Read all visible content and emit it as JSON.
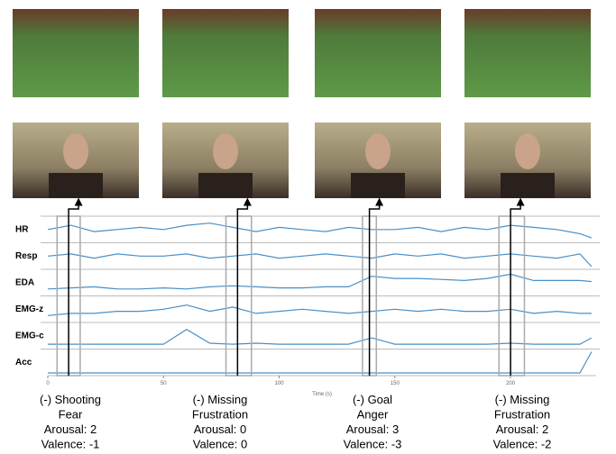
{
  "chart_data": {
    "type": "line",
    "xlabel": "Time (s)",
    "xlim": [
      0,
      237
    ],
    "xticks": [
      0,
      50,
      100,
      150,
      200
    ],
    "ylim": [
      0,
      1
    ],
    "color": "#4a8fc6",
    "x": [
      0,
      10,
      20,
      30,
      40,
      50,
      60,
      70,
      80,
      90,
      100,
      110,
      120,
      130,
      140,
      150,
      160,
      170,
      180,
      190,
      200,
      210,
      220,
      230,
      235
    ],
    "series": [
      {
        "name": "HR",
        "values": [
          0.5,
          0.7,
          0.4,
          0.5,
          0.6,
          0.5,
          0.7,
          0.8,
          0.6,
          0.4,
          0.6,
          0.5,
          0.4,
          0.6,
          0.5,
          0.5,
          0.6,
          0.4,
          0.6,
          0.5,
          0.7,
          0.6,
          0.5,
          0.3,
          0.1
        ]
      },
      {
        "name": "Resp",
        "values": [
          0.5,
          0.6,
          0.4,
          0.6,
          0.5,
          0.5,
          0.6,
          0.4,
          0.5,
          0.6,
          0.4,
          0.5,
          0.6,
          0.5,
          0.4,
          0.6,
          0.5,
          0.6,
          0.4,
          0.5,
          0.6,
          0.5,
          0.4,
          0.6,
          0.0
        ]
      },
      {
        "name": "EDA",
        "values": [
          0.2,
          0.25,
          0.3,
          0.2,
          0.2,
          0.25,
          0.2,
          0.3,
          0.35,
          0.3,
          0.25,
          0.25,
          0.3,
          0.3,
          0.8,
          0.7,
          0.7,
          0.65,
          0.6,
          0.7,
          0.9,
          0.6,
          0.6,
          0.6,
          0.55
        ]
      },
      {
        "name": "EMG-z",
        "values": [
          0.2,
          0.3,
          0.3,
          0.4,
          0.4,
          0.5,
          0.7,
          0.4,
          0.6,
          0.3,
          0.4,
          0.5,
          0.4,
          0.3,
          0.4,
          0.5,
          0.4,
          0.5,
          0.4,
          0.4,
          0.5,
          0.3,
          0.4,
          0.3,
          0.3
        ]
      },
      {
        "name": "EMG-c",
        "values": [
          0.1,
          0.1,
          0.1,
          0.1,
          0.1,
          0.1,
          0.8,
          0.15,
          0.1,
          0.15,
          0.1,
          0.1,
          0.1,
          0.1,
          0.4,
          0.1,
          0.1,
          0.1,
          0.1,
          0.1,
          0.15,
          0.1,
          0.1,
          0.1,
          0.4
        ]
      },
      {
        "name": "Acc",
        "values": [
          0,
          0,
          0,
          0,
          0,
          0,
          0,
          0,
          0,
          0,
          0,
          0,
          0,
          0,
          0,
          0,
          0,
          0,
          0,
          0,
          0,
          0,
          0,
          0,
          1
        ]
      }
    ],
    "events": [
      {
        "time": 9,
        "window": [
          4,
          14
        ],
        "labels": [
          "(-) Shooting",
          "Fear",
          "Arousal: 2",
          "Valence: -1"
        ]
      },
      {
        "time": 82,
        "window": [
          77,
          88
        ],
        "labels": [
          "(-) Missing",
          "Frustration",
          "Arousal: 0",
          "Valence: 0"
        ]
      },
      {
        "time": 139,
        "window": [
          136,
          142
        ],
        "labels": [
          "(-) Goal",
          "Anger",
          "Arousal: 3",
          "Valence: -3"
        ]
      },
      {
        "time": 200,
        "window": [
          195,
          206
        ],
        "labels": [
          "(-) Missing",
          "Frustration",
          "Arousal: 2",
          "Valence: -2"
        ]
      }
    ]
  }
}
